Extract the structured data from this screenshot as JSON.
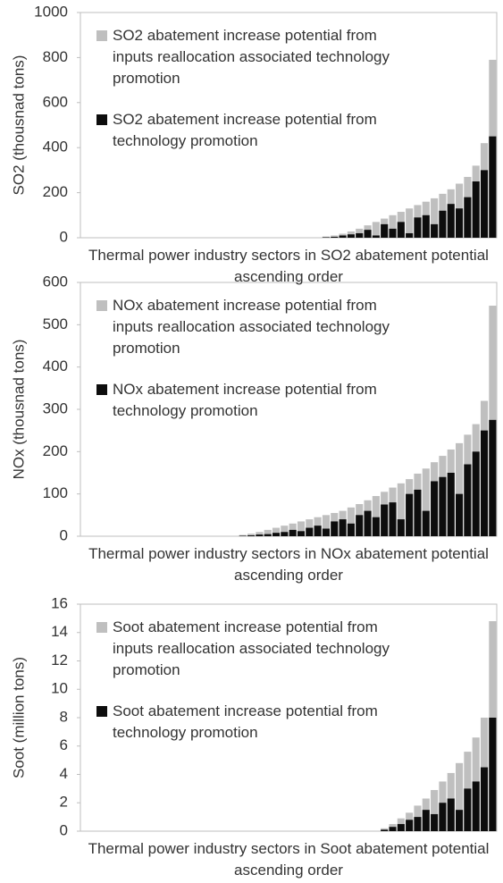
{
  "chart_data": [
    {
      "type": "bar",
      "ylabel": "SO2 (thousnad tons)",
      "xlabel": "Thermal power industry sectors in SO2 abatement potential ascending order",
      "categories": [
        null,
        null,
        null,
        null,
        null,
        null,
        null,
        null,
        null,
        null,
        null,
        null,
        null,
        null,
        null,
        null,
        null,
        null,
        null,
        null,
        null,
        null,
        null,
        null,
        null,
        null,
        null,
        null,
        null,
        null,
        null,
        null,
        null,
        null,
        null,
        null,
        null,
        null,
        null,
        null,
        null,
        null,
        null,
        null,
        null,
        null,
        null,
        null,
        null,
        null
      ],
      "series": [
        {
          "name": "SO2 abatement increase potential from inputs reallocation associated technology promotion",
          "color": "#bfbfbf",
          "values": [
            0,
            0,
            0,
            0,
            0,
            0,
            0,
            0,
            0,
            0,
            0,
            0,
            0,
            0,
            0,
            0,
            0,
            0,
            0,
            0,
            0,
            0,
            0,
            0,
            0,
            0,
            0,
            0,
            0,
            5,
            10,
            18,
            28,
            40,
            55,
            70,
            85,
            100,
            115,
            130,
            145,
            160,
            175,
            195,
            215,
            240,
            270,
            320,
            420,
            790
          ]
        },
        {
          "name": "SO2 abatement increase potential from technology promotion",
          "color": "#0d0d0d",
          "values": [
            0,
            0,
            0,
            0,
            0,
            0,
            0,
            0,
            0,
            0,
            0,
            0,
            0,
            0,
            0,
            0,
            0,
            0,
            0,
            0,
            0,
            0,
            0,
            0,
            0,
            0,
            0,
            0,
            0,
            2,
            4,
            10,
            15,
            20,
            35,
            10,
            60,
            40,
            70,
            20,
            90,
            100,
            60,
            120,
            150,
            130,
            180,
            250,
            300,
            450
          ]
        }
      ],
      "ylim": [
        0,
        1000
      ],
      "yticks": [
        0,
        200,
        400,
        600,
        800,
        1000
      ],
      "grid": false,
      "legend": "upper-left"
    },
    {
      "type": "bar",
      "ylabel": "NOx (thousnad tons)",
      "xlabel": "Thermal power industry sectors in NOx abatement potential ascending order",
      "categories": [
        null,
        null,
        null,
        null,
        null,
        null,
        null,
        null,
        null,
        null,
        null,
        null,
        null,
        null,
        null,
        null,
        null,
        null,
        null,
        null,
        null,
        null,
        null,
        null,
        null,
        null,
        null,
        null,
        null,
        null,
        null,
        null,
        null,
        null,
        null,
        null,
        null,
        null,
        null,
        null,
        null,
        null,
        null,
        null,
        null,
        null,
        null,
        null,
        null,
        null
      ],
      "series": [
        {
          "name": "NOx abatement increase potential from inputs reallocation associated technology promotion",
          "color": "#bfbfbf",
          "values": [
            0,
            0,
            0,
            0,
            0,
            0,
            0,
            0,
            0,
            0,
            0,
            0,
            0,
            0,
            0,
            0,
            0,
            0,
            0,
            3,
            6,
            10,
            15,
            20,
            25,
            30,
            35,
            40,
            45,
            50,
            55,
            60,
            68,
            76,
            85,
            95,
            105,
            115,
            125,
            135,
            148,
            160,
            175,
            190,
            205,
            220,
            240,
            265,
            320,
            545
          ]
        },
        {
          "name": "NOx abatement increase potential from technology promotion",
          "color": "#0d0d0d",
          "values": [
            0,
            0,
            0,
            0,
            0,
            0,
            0,
            0,
            0,
            0,
            0,
            0,
            0,
            0,
            0,
            0,
            0,
            0,
            0,
            1,
            2,
            4,
            5,
            8,
            10,
            15,
            12,
            20,
            25,
            18,
            35,
            40,
            30,
            50,
            60,
            45,
            75,
            80,
            40,
            100,
            110,
            60,
            130,
            140,
            150,
            100,
            170,
            200,
            250,
            275
          ]
        }
      ],
      "ylim": [
        0,
        600
      ],
      "yticks": [
        0,
        100,
        200,
        300,
        400,
        500,
        600
      ],
      "grid": false,
      "legend": "upper-left"
    },
    {
      "type": "bar",
      "ylabel": "Soot (million tons)",
      "xlabel": "Thermal power industry sectors in Soot abatement potential ascending order",
      "categories": [
        null,
        null,
        null,
        null,
        null,
        null,
        null,
        null,
        null,
        null,
        null,
        null,
        null,
        null,
        null,
        null,
        null,
        null,
        null,
        null,
        null,
        null,
        null,
        null,
        null,
        null,
        null,
        null,
        null,
        null,
        null,
        null,
        null,
        null,
        null,
        null,
        null,
        null,
        null,
        null,
        null,
        null,
        null,
        null,
        null,
        null,
        null,
        null,
        null,
        null
      ],
      "series": [
        {
          "name": "Soot abatement increase potential from inputs reallocation associated technology promotion",
          "color": "#bfbfbf",
          "values": [
            0,
            0,
            0,
            0,
            0,
            0,
            0,
            0,
            0,
            0,
            0,
            0,
            0,
            0,
            0,
            0,
            0,
            0,
            0,
            0,
            0,
            0,
            0,
            0,
            0,
            0,
            0,
            0,
            0,
            0,
            0,
            0,
            0,
            0,
            0,
            0,
            0.2,
            0.5,
            0.9,
            1.3,
            1.8,
            2.3,
            2.9,
            3.5,
            4.1,
            4.8,
            5.6,
            6.6,
            8.0,
            14.8
          ]
        },
        {
          "name": "Soot abatement increase potential from technology promotion",
          "color": "#0d0d0d",
          "values": [
            0,
            0,
            0,
            0,
            0,
            0,
            0,
            0,
            0,
            0,
            0,
            0,
            0,
            0,
            0,
            0,
            0,
            0,
            0,
            0,
            0,
            0,
            0,
            0,
            0,
            0,
            0,
            0,
            0,
            0,
            0,
            0,
            0,
            0,
            0,
            0,
            0.1,
            0.3,
            0.5,
            0.8,
            1.0,
            1.5,
            1.2,
            2.0,
            2.3,
            1.5,
            3.0,
            3.5,
            4.5,
            8.0
          ]
        }
      ],
      "ylim": [
        0,
        16
      ],
      "yticks": [
        0,
        2,
        4,
        6,
        8,
        10,
        12,
        14,
        16
      ],
      "grid": false,
      "legend": "upper-left"
    }
  ]
}
